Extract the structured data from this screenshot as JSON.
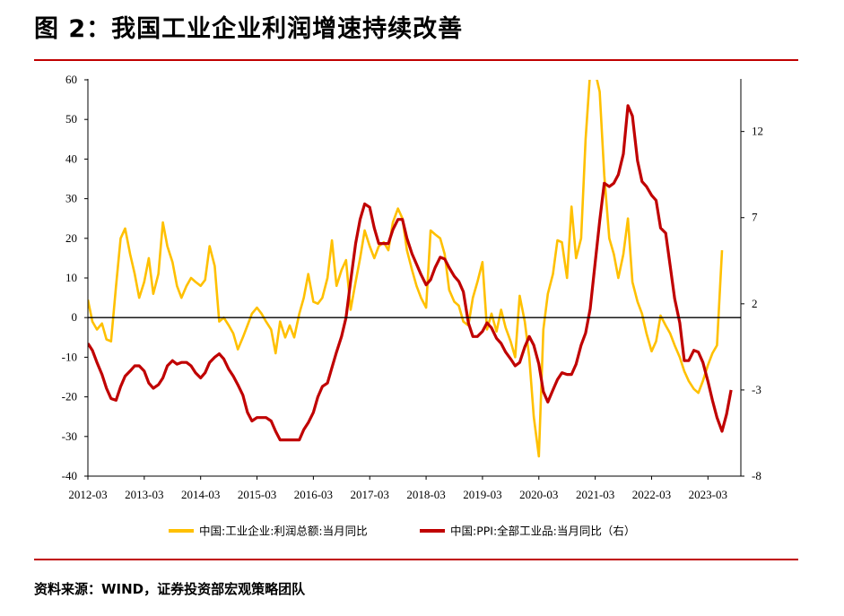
{
  "header": {
    "title": "图 2：我国工业企业利润增速持续改善"
  },
  "footer": {
    "source": "资料来源：WIND，证券投资部宏观策略团队"
  },
  "chart_data": {
    "type": "line",
    "x_tick_labels": [
      "2012-03",
      "2013-03",
      "2014-03",
      "2015-03",
      "2016-03",
      "2017-03",
      "2018-03",
      "2019-03",
      "2020-03",
      "2021-03",
      "2022-03",
      "2023-03"
    ],
    "y_left": {
      "ylim": [
        -40,
        60
      ],
      "ticks": [
        -40,
        -30,
        -20,
        -10,
        0,
        10,
        20,
        30,
        40,
        50,
        60
      ]
    },
    "y_right": {
      "ylim": [
        -8,
        15
      ],
      "ticks": [
        -8,
        -3,
        2,
        7,
        12
      ]
    },
    "legend_position": "bottom-center",
    "grid": false,
    "series": [
      {
        "name": "中国:工业企业:利润总额:当月同比",
        "axis": "left",
        "color": "#FFC000",
        "points": [
          [
            2012.17,
            4.5
          ],
          [
            2012.25,
            -1
          ],
          [
            2012.33,
            -3
          ],
          [
            2012.42,
            -1.5
          ],
          [
            2012.5,
            -5.5
          ],
          [
            2012.58,
            -6
          ],
          [
            2012.67,
            8
          ],
          [
            2012.75,
            20
          ],
          [
            2012.83,
            22.5
          ],
          [
            2012.92,
            16
          ],
          [
            2013.0,
            11
          ],
          [
            2013.08,
            5
          ],
          [
            2013.17,
            9
          ],
          [
            2013.25,
            15
          ],
          [
            2013.33,
            6
          ],
          [
            2013.42,
            11
          ],
          [
            2013.5,
            24
          ],
          [
            2013.58,
            18
          ],
          [
            2013.67,
            14
          ],
          [
            2013.75,
            8
          ],
          [
            2013.83,
            5
          ],
          [
            2013.92,
            8
          ],
          [
            2014.0,
            10
          ],
          [
            2014.08,
            9
          ],
          [
            2014.17,
            8
          ],
          [
            2014.25,
            9.5
          ],
          [
            2014.33,
            18
          ],
          [
            2014.42,
            13
          ],
          [
            2014.5,
            -1
          ],
          [
            2014.58,
            0
          ],
          [
            2014.67,
            -2
          ],
          [
            2014.75,
            -4
          ],
          [
            2014.83,
            -8
          ],
          [
            2014.92,
            -5
          ],
          [
            2015.0,
            -2
          ],
          [
            2015.08,
            1
          ],
          [
            2015.17,
            2.5
          ],
          [
            2015.25,
            1
          ],
          [
            2015.33,
            -1
          ],
          [
            2015.42,
            -3
          ],
          [
            2015.5,
            -9
          ],
          [
            2015.58,
            -1
          ],
          [
            2015.67,
            -5
          ],
          [
            2015.75,
            -2
          ],
          [
            2015.83,
            -5
          ],
          [
            2015.92,
            1
          ],
          [
            2016.0,
            5
          ],
          [
            2016.08,
            11
          ],
          [
            2016.17,
            4
          ],
          [
            2016.25,
            3.5
          ],
          [
            2016.33,
            5
          ],
          [
            2016.42,
            10
          ],
          [
            2016.5,
            19.5
          ],
          [
            2016.58,
            8
          ],
          [
            2016.67,
            12
          ],
          [
            2016.75,
            14.5
          ],
          [
            2016.83,
            2
          ],
          [
            2016.92,
            9
          ],
          [
            2017.0,
            15
          ],
          [
            2017.08,
            22
          ],
          [
            2017.17,
            18
          ],
          [
            2017.25,
            15
          ],
          [
            2017.33,
            18
          ],
          [
            2017.42,
            19
          ],
          [
            2017.5,
            17
          ],
          [
            2017.58,
            24
          ],
          [
            2017.67,
            27.5
          ],
          [
            2017.75,
            25
          ],
          [
            2017.83,
            17
          ],
          [
            2017.92,
            12
          ],
          [
            2018.0,
            8
          ],
          [
            2018.08,
            5
          ],
          [
            2018.17,
            2.5
          ],
          [
            2018.25,
            22
          ],
          [
            2018.33,
            21
          ],
          [
            2018.42,
            20
          ],
          [
            2018.5,
            16
          ],
          [
            2018.58,
            7
          ],
          [
            2018.67,
            4
          ],
          [
            2018.75,
            3
          ],
          [
            2018.83,
            -1
          ],
          [
            2018.92,
            -2
          ],
          [
            2019.0,
            5
          ],
          [
            2019.08,
            9
          ],
          [
            2019.17,
            14
          ],
          [
            2019.25,
            -3
          ],
          [
            2019.33,
            1
          ],
          [
            2019.42,
            -3.5
          ],
          [
            2019.5,
            2
          ],
          [
            2019.58,
            -2.5
          ],
          [
            2019.67,
            -6
          ],
          [
            2019.75,
            -10
          ],
          [
            2019.83,
            5.5
          ],
          [
            2019.92,
            -1
          ],
          [
            2020.0,
            -10
          ],
          [
            2020.08,
            -25
          ],
          [
            2020.17,
            -35
          ],
          [
            2020.25,
            -3
          ],
          [
            2020.33,
            6
          ],
          [
            2020.42,
            11
          ],
          [
            2020.5,
            19.5
          ],
          [
            2020.58,
            19
          ],
          [
            2020.67,
            10
          ],
          [
            2020.75,
            28
          ],
          [
            2020.83,
            15
          ],
          [
            2020.92,
            20
          ],
          [
            2021.0,
            45
          ],
          [
            2021.08,
            62
          ],
          [
            2021.17,
            62
          ],
          [
            2021.25,
            57
          ],
          [
            2021.33,
            36
          ],
          [
            2021.42,
            20
          ],
          [
            2021.5,
            16
          ],
          [
            2021.58,
            10
          ],
          [
            2021.67,
            16
          ],
          [
            2021.75,
            25
          ],
          [
            2021.83,
            9
          ],
          [
            2021.92,
            4
          ],
          [
            2022.0,
            1
          ],
          [
            2022.08,
            -4
          ],
          [
            2022.17,
            -8.5
          ],
          [
            2022.25,
            -6
          ],
          [
            2022.33,
            0.5
          ],
          [
            2022.42,
            -2
          ],
          [
            2022.5,
            -4
          ],
          [
            2022.58,
            -7
          ],
          [
            2022.67,
            -10
          ],
          [
            2022.75,
            -13.5
          ],
          [
            2022.83,
            -16
          ],
          [
            2022.92,
            -18
          ],
          [
            2023.0,
            -19
          ],
          [
            2023.08,
            -16
          ],
          [
            2023.17,
            -12
          ],
          [
            2023.25,
            -9
          ],
          [
            2023.33,
            -7
          ],
          [
            2023.42,
            17
          ]
        ]
      },
      {
        "name": "中国:PPI:全部工业品:当月同比（右）",
        "axis": "right",
        "color": "#C00000",
        "points": [
          [
            2012.17,
            -0.3
          ],
          [
            2012.25,
            -0.7
          ],
          [
            2012.33,
            -1.4
          ],
          [
            2012.42,
            -2.1
          ],
          [
            2012.5,
            -2.9
          ],
          [
            2012.58,
            -3.5
          ],
          [
            2012.67,
            -3.6
          ],
          [
            2012.75,
            -2.8
          ],
          [
            2012.83,
            -2.2
          ],
          [
            2012.92,
            -1.9
          ],
          [
            2013.0,
            -1.6
          ],
          [
            2013.08,
            -1.6
          ],
          [
            2013.17,
            -1.9
          ],
          [
            2013.25,
            -2.6
          ],
          [
            2013.33,
            -2.9
          ],
          [
            2013.42,
            -2.7
          ],
          [
            2013.5,
            -2.3
          ],
          [
            2013.58,
            -1.6
          ],
          [
            2013.67,
            -1.3
          ],
          [
            2013.75,
            -1.5
          ],
          [
            2013.83,
            -1.4
          ],
          [
            2013.92,
            -1.4
          ],
          [
            2014.0,
            -1.6
          ],
          [
            2014.08,
            -2.0
          ],
          [
            2014.17,
            -2.3
          ],
          [
            2014.25,
            -2.0
          ],
          [
            2014.33,
            -1.4
          ],
          [
            2014.42,
            -1.1
          ],
          [
            2014.5,
            -0.9
          ],
          [
            2014.58,
            -1.2
          ],
          [
            2014.67,
            -1.8
          ],
          [
            2014.75,
            -2.2
          ],
          [
            2014.83,
            -2.7
          ],
          [
            2014.92,
            -3.3
          ],
          [
            2015.0,
            -4.3
          ],
          [
            2015.08,
            -4.8
          ],
          [
            2015.17,
            -4.6
          ],
          [
            2015.25,
            -4.6
          ],
          [
            2015.33,
            -4.6
          ],
          [
            2015.42,
            -4.8
          ],
          [
            2015.5,
            -5.4
          ],
          [
            2015.58,
            -5.9
          ],
          [
            2015.67,
            -5.9
          ],
          [
            2015.75,
            -5.9
          ],
          [
            2015.83,
            -5.9
          ],
          [
            2015.92,
            -5.9
          ],
          [
            2016.0,
            -5.3
          ],
          [
            2016.08,
            -4.9
          ],
          [
            2016.17,
            -4.3
          ],
          [
            2016.25,
            -3.4
          ],
          [
            2016.33,
            -2.8
          ],
          [
            2016.42,
            -2.6
          ],
          [
            2016.5,
            -1.7
          ],
          [
            2016.58,
            -0.8
          ],
          [
            2016.67,
            0.1
          ],
          [
            2016.75,
            1.2
          ],
          [
            2016.83,
            3.3
          ],
          [
            2016.92,
            5.5
          ],
          [
            2017.0,
            6.9
          ],
          [
            2017.08,
            7.8
          ],
          [
            2017.17,
            7.6
          ],
          [
            2017.25,
            6.4
          ],
          [
            2017.33,
            5.5
          ],
          [
            2017.42,
            5.5
          ],
          [
            2017.5,
            5.5
          ],
          [
            2017.58,
            6.3
          ],
          [
            2017.67,
            6.9
          ],
          [
            2017.75,
            6.9
          ],
          [
            2017.83,
            5.8
          ],
          [
            2017.92,
            4.9
          ],
          [
            2018.0,
            4.3
          ],
          [
            2018.08,
            3.7
          ],
          [
            2018.17,
            3.1
          ],
          [
            2018.25,
            3.4
          ],
          [
            2018.33,
            4.1
          ],
          [
            2018.42,
            4.7
          ],
          [
            2018.5,
            4.6
          ],
          [
            2018.58,
            4.1
          ],
          [
            2018.67,
            3.6
          ],
          [
            2018.75,
            3.3
          ],
          [
            2018.83,
            2.7
          ],
          [
            2018.92,
            0.9
          ],
          [
            2019.0,
            0.1
          ],
          [
            2019.08,
            0.1
          ],
          [
            2019.17,
            0.4
          ],
          [
            2019.25,
            0.9
          ],
          [
            2019.33,
            0.6
          ],
          [
            2019.42,
            0
          ],
          [
            2019.5,
            -0.3
          ],
          [
            2019.58,
            -0.8
          ],
          [
            2019.67,
            -1.2
          ],
          [
            2019.75,
            -1.6
          ],
          [
            2019.83,
            -1.4
          ],
          [
            2019.92,
            -0.5
          ],
          [
            2020.0,
            0.1
          ],
          [
            2020.08,
            -0.4
          ],
          [
            2020.17,
            -1.5
          ],
          [
            2020.25,
            -3.1
          ],
          [
            2020.33,
            -3.7
          ],
          [
            2020.42,
            -3.0
          ],
          [
            2020.5,
            -2.4
          ],
          [
            2020.58,
            -2.0
          ],
          [
            2020.67,
            -2.1
          ],
          [
            2020.75,
            -2.1
          ],
          [
            2020.83,
            -1.5
          ],
          [
            2020.92,
            -0.4
          ],
          [
            2021.0,
            0.3
          ],
          [
            2021.08,
            1.7
          ],
          [
            2021.17,
            4.4
          ],
          [
            2021.25,
            6.8
          ],
          [
            2021.33,
            9.0
          ],
          [
            2021.42,
            8.8
          ],
          [
            2021.5,
            9.0
          ],
          [
            2021.58,
            9.5
          ],
          [
            2021.67,
            10.7
          ],
          [
            2021.75,
            13.5
          ],
          [
            2021.83,
            12.9
          ],
          [
            2021.92,
            10.3
          ],
          [
            2022.0,
            9.1
          ],
          [
            2022.08,
            8.8
          ],
          [
            2022.17,
            8.3
          ],
          [
            2022.25,
            8.0
          ],
          [
            2022.33,
            6.4
          ],
          [
            2022.42,
            6.1
          ],
          [
            2022.5,
            4.2
          ],
          [
            2022.58,
            2.3
          ],
          [
            2022.67,
            0.9
          ],
          [
            2022.75,
            -1.3
          ],
          [
            2022.83,
            -1.3
          ],
          [
            2022.92,
            -0.7
          ],
          [
            2023.0,
            -0.8
          ],
          [
            2023.08,
            -1.4
          ],
          [
            2023.17,
            -2.5
          ],
          [
            2023.25,
            -3.6
          ],
          [
            2023.33,
            -4.6
          ],
          [
            2023.42,
            -5.4
          ],
          [
            2023.5,
            -4.4
          ],
          [
            2023.58,
            -3.0
          ]
        ]
      }
    ]
  }
}
